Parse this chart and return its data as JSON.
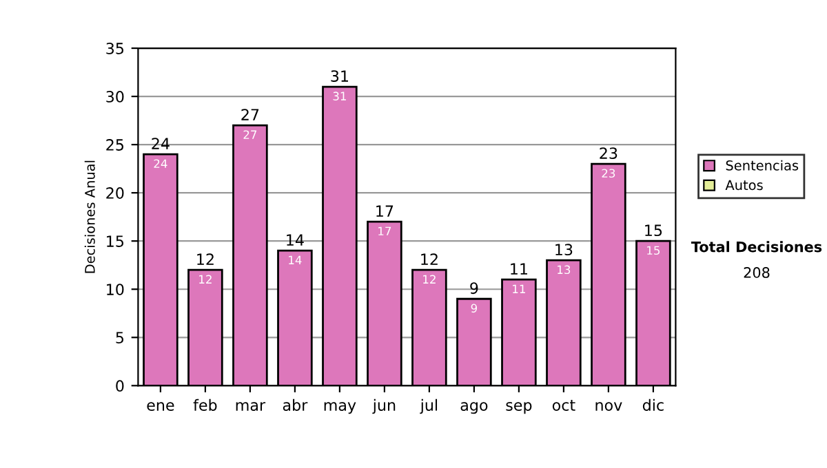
{
  "chart_data": {
    "type": "bar",
    "ylabel": "Decisiones Anual",
    "categories": [
      "ene",
      "feb",
      "mar",
      "abr",
      "may",
      "jun",
      "jul",
      "ago",
      "sep",
      "oct",
      "nov",
      "dic"
    ],
    "series": [
      {
        "name": "Sentencias",
        "color": "#dd77bb",
        "values": [
          24,
          12,
          27,
          14,
          31,
          17,
          12,
          9,
          11,
          13,
          23,
          15
        ],
        "value_labels": [
          "24",
          "12",
          "27",
          "14",
          "31",
          "17",
          "12",
          "9",
          "11",
          "13",
          "23",
          "15"
        ]
      },
      {
        "name": "Autos",
        "color": "#e4ee99",
        "values": [
          null,
          null,
          null,
          null,
          null,
          null,
          null,
          null,
          null,
          null,
          null,
          null
        ]
      }
    ],
    "ylim": [
      0,
      35
    ],
    "yticks": [
      0,
      5,
      10,
      15,
      20,
      25,
      30,
      35
    ],
    "grid": "y",
    "legend": "right",
    "annotations": [
      "Total Decisiones",
      "208",
      {
        "text": "24",
        "x": "ene",
        "y": 24
      },
      {
        "text": "12",
        "x": "feb",
        "y": 12
      },
      {
        "text": "27",
        "x": "mar",
        "y": 27
      },
      {
        "text": "14",
        "x": "abr",
        "y": 14
      },
      {
        "text": "31",
        "x": "may",
        "y": 31
      },
      {
        "text": "17",
        "x": "jun",
        "y": 17
      },
      {
        "text": "12",
        "x": "jul",
        "y": 12
      },
      {
        "text": "9",
        "x": "ago",
        "y": 9
      },
      {
        "text": "11",
        "x": "sep",
        "y": 11
      },
      {
        "text": "13",
        "x": "oct",
        "y": 13
      },
      {
        "text": "23",
        "x": "nov",
        "y": 23
      },
      {
        "text": "15",
        "x": "dic",
        "y": 15
      }
    ]
  }
}
